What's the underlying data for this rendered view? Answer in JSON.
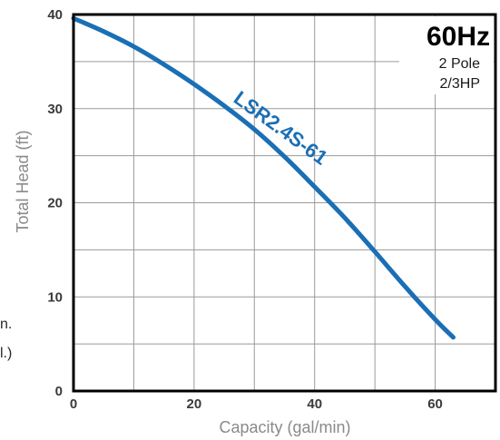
{
  "chart_data": {
    "type": "line",
    "title": "",
    "xlabel": "Capacity  (gal/min)",
    "ylabel": "Total  Head  (ft)",
    "xlim": [
      0,
      70
    ],
    "ylim": [
      0,
      40
    ],
    "x_ticks": [
      0,
      20,
      40,
      60
    ],
    "y_ticks": [
      0,
      10,
      20,
      30,
      40
    ],
    "x_grid_step": 10,
    "y_grid_step": 5,
    "grid": true,
    "series": [
      {
        "name": "LSR2.4S-61",
        "color": "#1a6fb5",
        "x": [
          0,
          5,
          10,
          15,
          20,
          25,
          30,
          35,
          40,
          45,
          50,
          55,
          60,
          63
        ],
        "y": [
          39.6,
          38.2,
          36.6,
          34.7,
          32.6,
          30.3,
          27.8,
          24.9,
          21.7,
          18.4,
          14.8,
          11.1,
          7.6,
          5.7
        ]
      }
    ],
    "annotations": {
      "frequency": "60Hz",
      "poles": "2 Pole",
      "power": "2/3HP"
    }
  },
  "edge_fragments": [
    "n.",
    "l.)"
  ]
}
